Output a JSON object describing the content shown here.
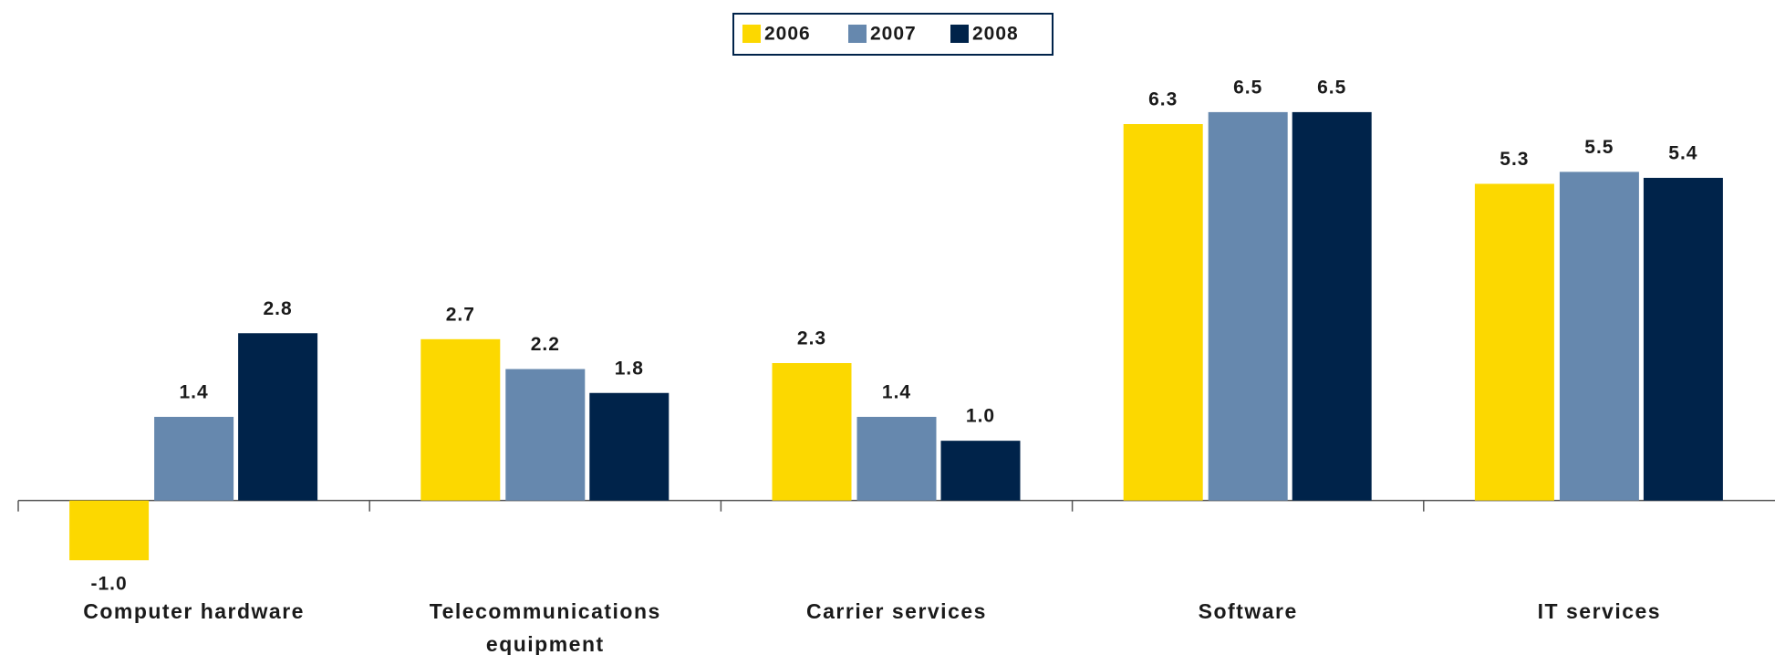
{
  "chart_data": {
    "type": "bar",
    "categories": [
      "Computer hardware",
      "Telecommunications equipment",
      "Carrier services",
      "Software",
      "IT services"
    ],
    "series": [
      {
        "name": "2006",
        "color": "#fcd800",
        "values": [
          -1.0,
          2.7,
          2.3,
          6.3,
          5.3
        ],
        "value_labels": [
          "-1.0",
          "2.7",
          "2.3",
          "6.3",
          "5.3"
        ]
      },
      {
        "name": "2007",
        "color": "#6688ae",
        "values": [
          1.4,
          2.2,
          1.4,
          6.5,
          5.5
        ],
        "value_labels": [
          "1.4",
          "2.2",
          "1.4",
          "6.5",
          "5.5"
        ]
      },
      {
        "name": "2008",
        "color": "#00234a",
        "values": [
          2.8,
          1.8,
          1.0,
          6.5,
          5.4
        ],
        "value_labels": [
          "2.8",
          "1.8",
          "1.0",
          "6.5",
          "5.4"
        ]
      }
    ],
    "ylim": [
      -1.5,
      7.5
    ],
    "legend": "top"
  }
}
